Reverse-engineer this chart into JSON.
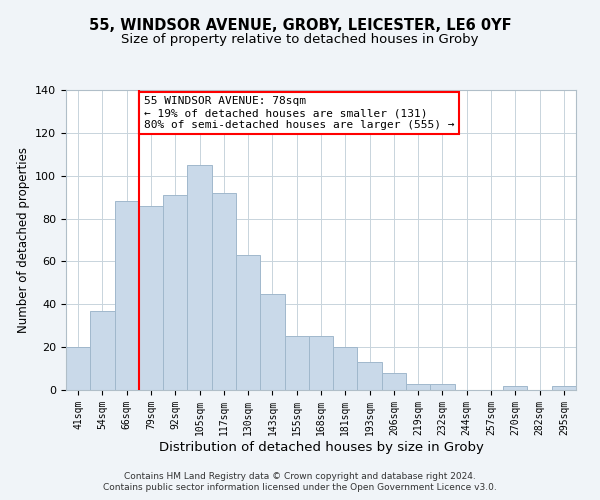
{
  "title1": "55, WINDSOR AVENUE, GROBY, LEICESTER, LE6 0YF",
  "title2": "Size of property relative to detached houses in Groby",
  "xlabel": "Distribution of detached houses by size in Groby",
  "ylabel": "Number of detached properties",
  "footer1": "Contains HM Land Registry data © Crown copyright and database right 2024.",
  "footer2": "Contains public sector information licensed under the Open Government Licence v3.0.",
  "bin_labels": [
    "41sqm",
    "54sqm",
    "66sqm",
    "79sqm",
    "92sqm",
    "105sqm",
    "117sqm",
    "130sqm",
    "143sqm",
    "155sqm",
    "168sqm",
    "181sqm",
    "193sqm",
    "206sqm",
    "219sqm",
    "232sqm",
    "244sqm",
    "257sqm",
    "270sqm",
    "282sqm",
    "295sqm"
  ],
  "bar_heights": [
    20,
    37,
    88,
    86,
    91,
    105,
    92,
    63,
    45,
    25,
    25,
    20,
    13,
    8,
    3,
    3,
    0,
    0,
    2,
    0,
    2
  ],
  "bar_color": "#c9d9e9",
  "bar_edge_color": "#a0b8cc",
  "vline_x_index": 3,
  "vline_color": "red",
  "annotation_title": "55 WINDSOR AVENUE: 78sqm",
  "annotation_line1": "← 19% of detached houses are smaller (131)",
  "annotation_line2": "80% of semi-detached houses are larger (555) →",
  "annotation_box_color": "white",
  "annotation_box_edge": "red",
  "ylim": [
    0,
    140
  ],
  "yticks": [
    0,
    20,
    40,
    60,
    80,
    100,
    120,
    140
  ],
  "background_color": "#f0f4f8",
  "plot_background": "white",
  "grid_color": "#c8d4dc",
  "title1_fontsize": 10.5,
  "title2_fontsize": 9.5,
  "xlabel_fontsize": 9.5,
  "ylabel_fontsize": 8.5,
  "footer_fontsize": 6.5
}
